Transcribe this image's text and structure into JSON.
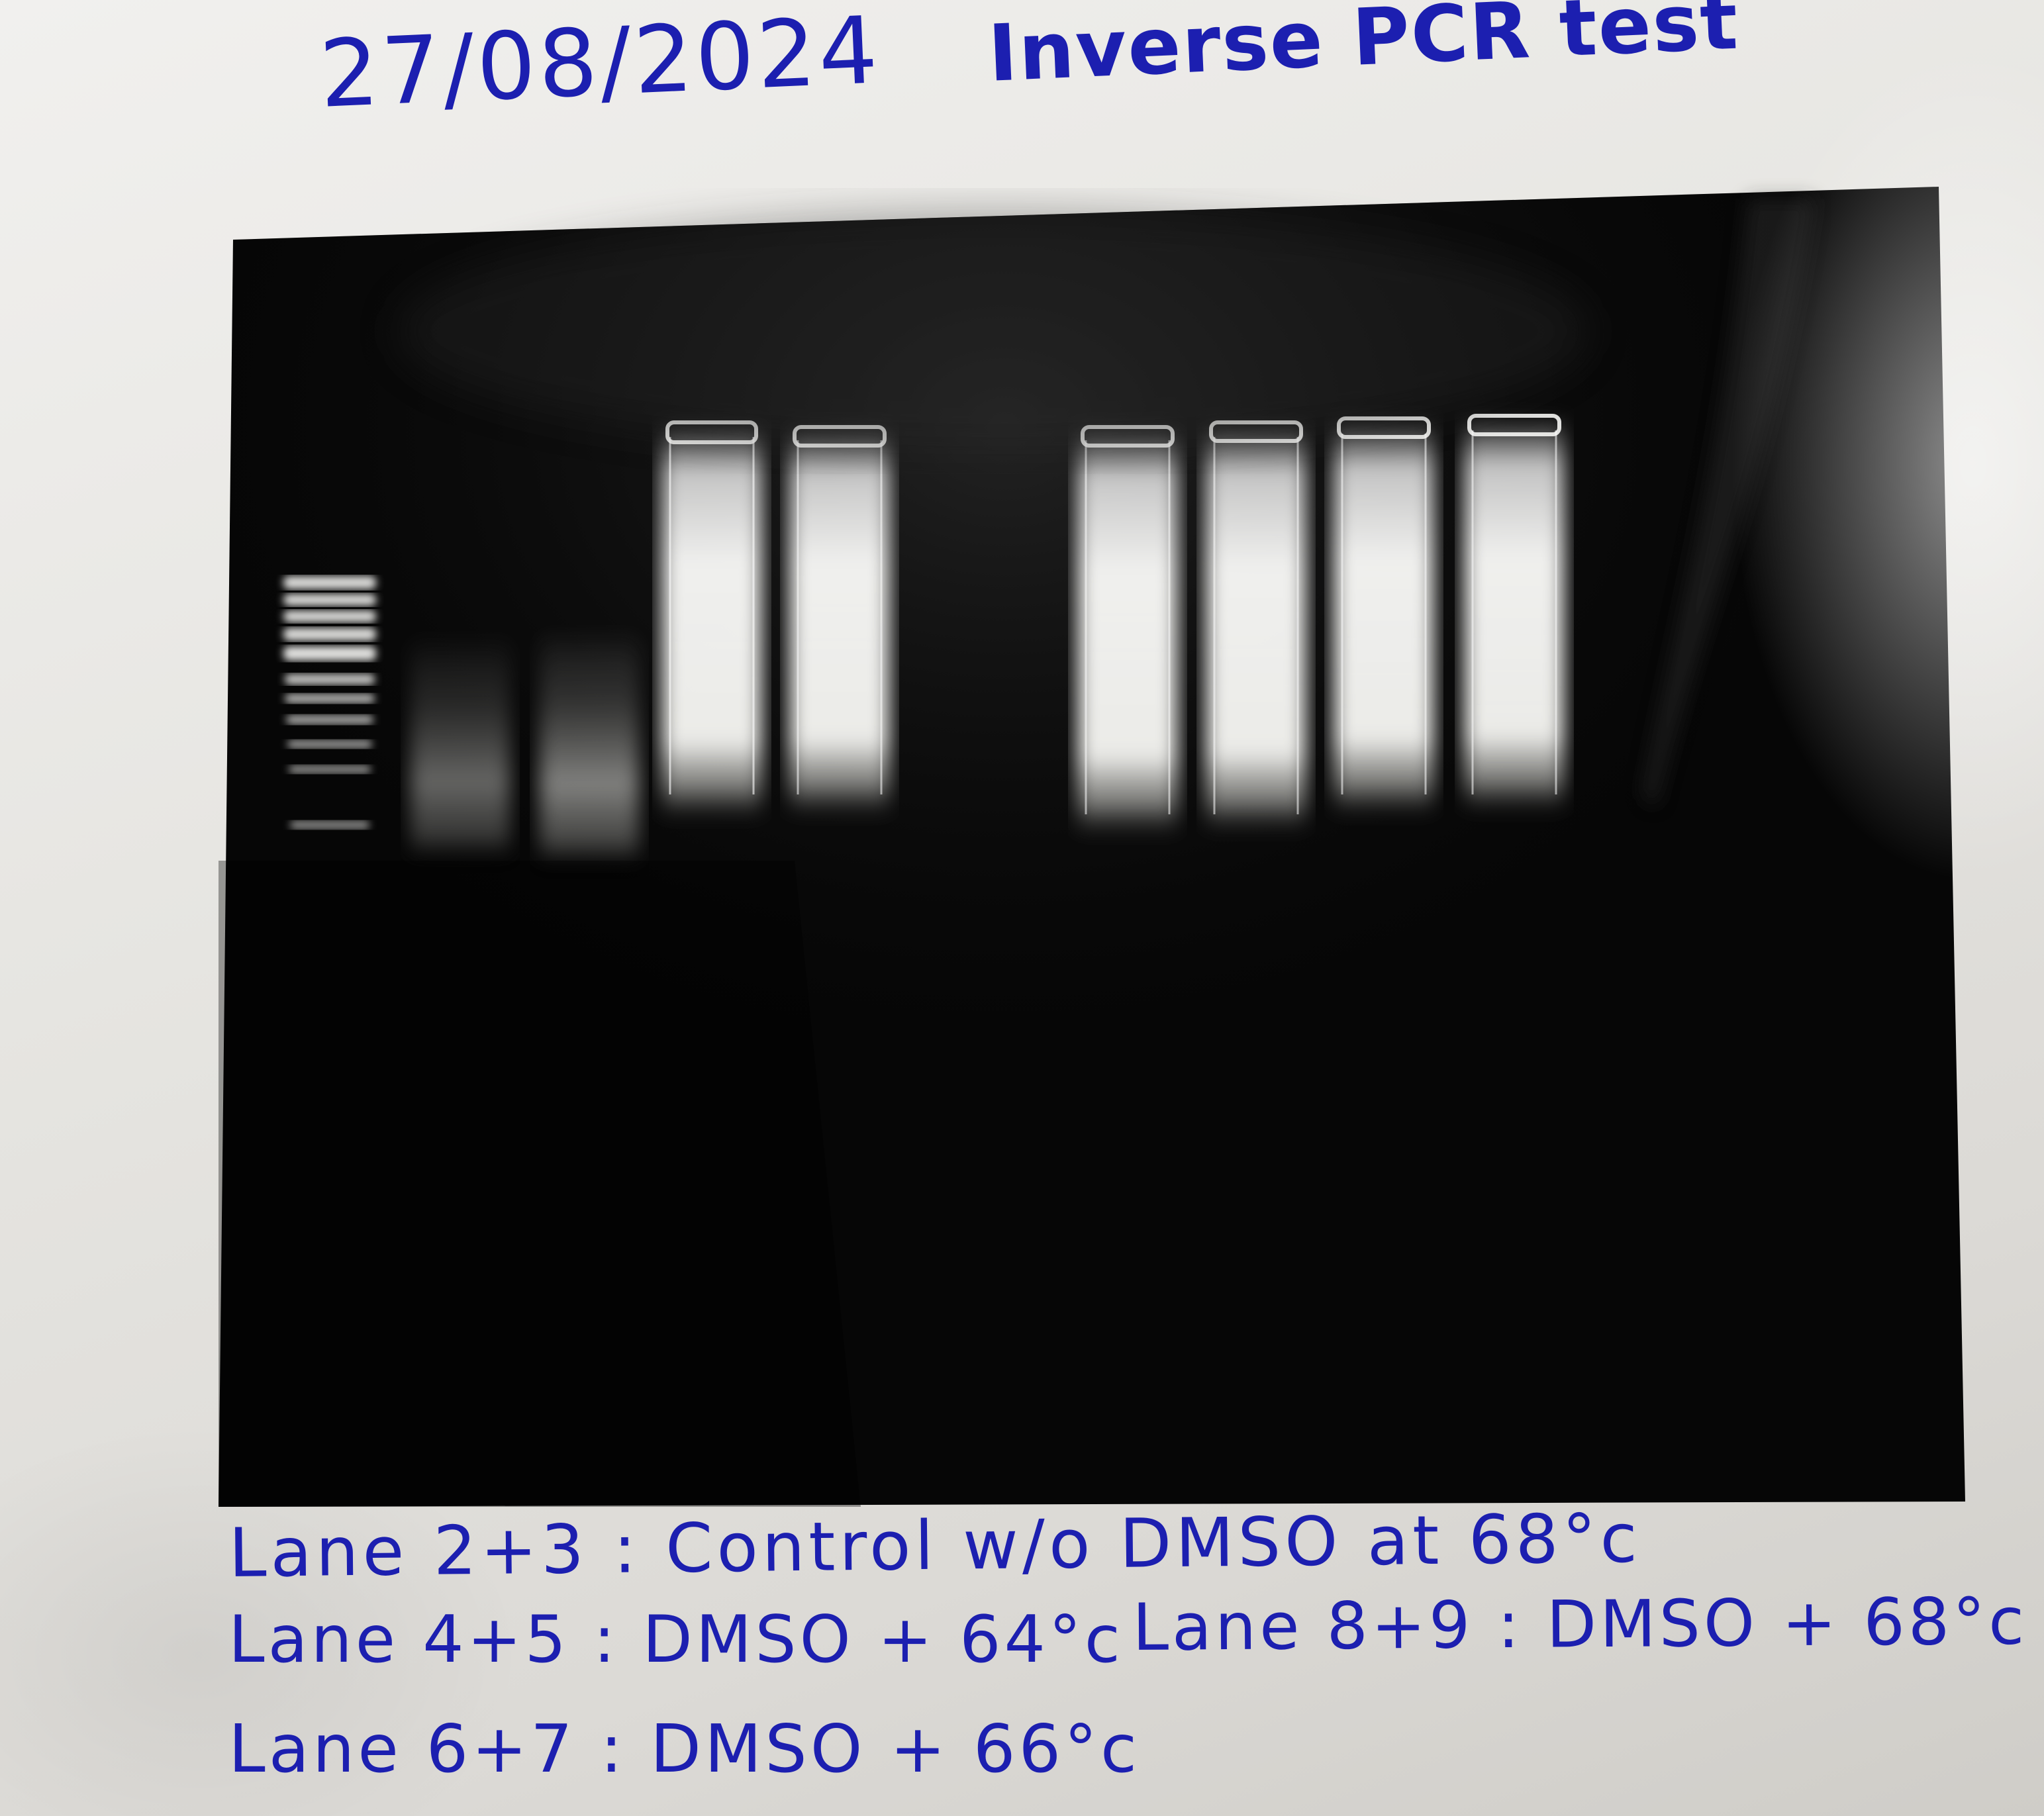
{
  "header": {
    "date": "27/08/2024",
    "title": "Inverse PCR test"
  },
  "notes": {
    "lane_2_3": "Lane 2+3 : Control w/o DMSO at 68°c",
    "lane_4_5": "Lane 4+5 : DMSO + 64°c",
    "lane_8_9": "Lane 8+9 : DMSO + 68°c",
    "lane_6_7": "Lane 6+7 : DMSO + 66°c"
  },
  "gel": {
    "lane_count": 11,
    "ladder_bands": 11,
    "sample_lanes": [
      {
        "lane": 2,
        "intensity": 0.55
      },
      {
        "lane": 3,
        "intensity": 0.7
      },
      {
        "lane": 4,
        "intensity": 1.0
      },
      {
        "lane": 5,
        "intensity": 1.0
      },
      {
        "lane": 6,
        "intensity": 1.0
      },
      {
        "lane": 7,
        "intensity": 1.0
      },
      {
        "lane": 8,
        "intensity": 1.0
      },
      {
        "lane": 9,
        "intensity": 1.0
      }
    ]
  },
  "colors": {
    "ink": "#1c1fb0",
    "gel_background": "#050505",
    "band": "#f2f2f0"
  }
}
